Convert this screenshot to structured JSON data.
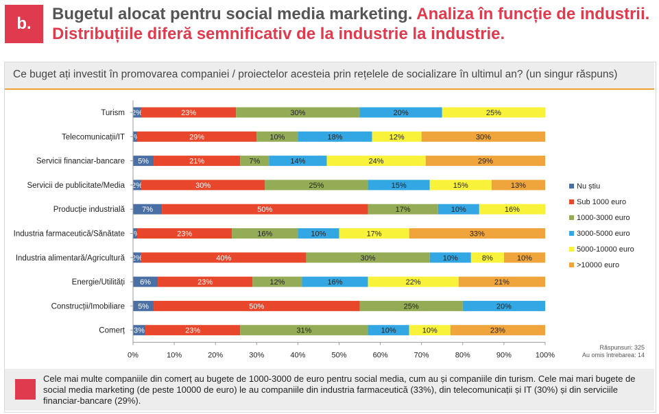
{
  "header": {
    "badge": "b.",
    "title_main": "Bugetul alocat pentru social media marketing.",
    "title_highlight": "Analiza în funcție de industrii. Distribuțiile diferă semnificativ de la industrie la industrie."
  },
  "question": "Ce buget ați investit în promovarea companiei / proiectelor acesteia prin rețelele de socializare în ultimul an? (un singur răspuns)",
  "footnote": {
    "responses": "Răspunsuri: 325",
    "skipped": "Au omis întrebarea: 14"
  },
  "note": "Cele mai multe companiile din comerț au bugete de 1000-3000 de euro pentru social media, cum au și companiile din turism. Cele mai mari bugete de social media marketing (de peste 10000 de euro) le au companiile din industria farmaceutică (33%), din telecomunicații și IT (30%) și din serviciile financiar-bancare (29%).",
  "colors": {
    "accent": "#e03a4e",
    "series": [
      "#4a6fa5",
      "#e8472b",
      "#93ac55",
      "#33a7e4",
      "#f9f23b",
      "#f0a53c"
    ]
  },
  "chart_data": {
    "type": "bar",
    "orientation": "horizontal",
    "stacked": "percent",
    "categories": [
      "Turism",
      "Telecomunicații/IT",
      "Servicii financiar-bancare",
      "Servicii de publicitate/Media",
      "Producție industrială",
      "Industria farmaceutică/Sănătate",
      "Industria alimentară/Agricultură",
      "Energie/Utilități",
      "Construcții/Imobiliare",
      "Comerț"
    ],
    "series": [
      {
        "name": "Nu știu",
        "values": [
          2,
          1,
          5,
          2,
          7,
          1,
          2,
          6,
          5,
          3
        ]
      },
      {
        "name": "Sub 1000 euro",
        "values": [
          23,
          29,
          21,
          30,
          50,
          23,
          40,
          23,
          50,
          23
        ]
      },
      {
        "name": "1000-3000 euro",
        "values": [
          30,
          10,
          7,
          25,
          17,
          16,
          30,
          12,
          25,
          31
        ]
      },
      {
        "name": "3000-5000 euro",
        "values": [
          20,
          18,
          14,
          15,
          10,
          10,
          10,
          16,
          20,
          10
        ]
      },
      {
        "name": "5000-10000 euro",
        "values": [
          25,
          12,
          24,
          15,
          16,
          17,
          8,
          22,
          0,
          10
        ]
      },
      {
        "name": ">10000 euro",
        "values": [
          0,
          30,
          29,
          13,
          0,
          33,
          10,
          21,
          0,
          23
        ]
      }
    ],
    "xticks": [
      "0%",
      "10%",
      "20%",
      "30%",
      "40%",
      "50%",
      "60%",
      "70%",
      "80%",
      "90%",
      "100%"
    ],
    "xlim": [
      0,
      100
    ],
    "legend": "right",
    "grid": false
  }
}
